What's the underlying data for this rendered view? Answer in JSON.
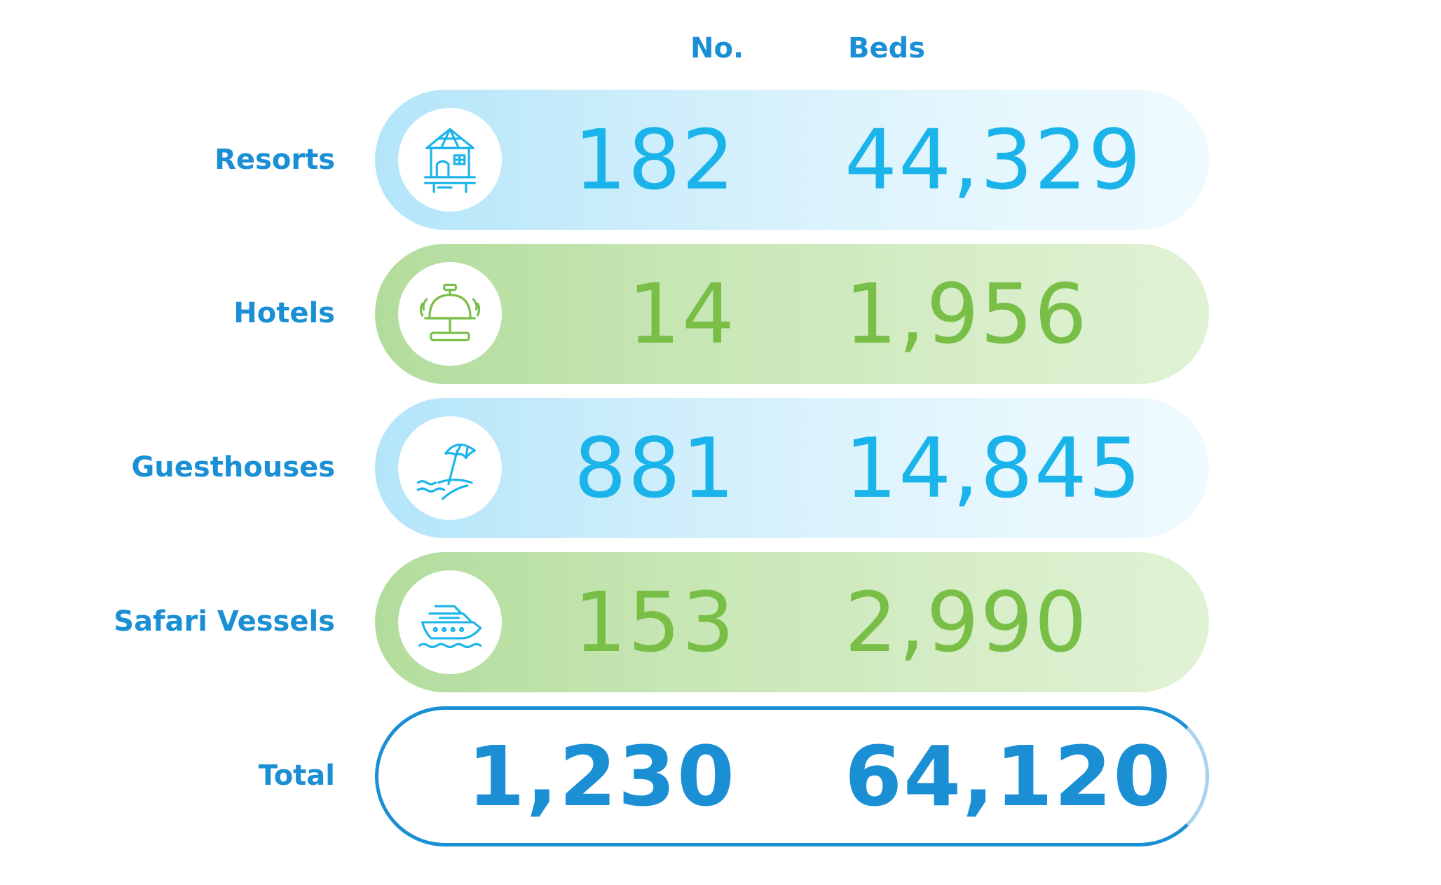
{
  "header": {
    "no_label": "No.",
    "beds_label": "Beds"
  },
  "rows": [
    {
      "label": "Resorts",
      "icon": "bungalow-icon",
      "count": "182",
      "beds": "44,329",
      "color": "#1bb4ea"
    },
    {
      "label": "Hotels",
      "icon": "reception-bell-icon",
      "count": "14",
      "beds": "1,956",
      "color": "#78be47"
    },
    {
      "label": "Guesthouses",
      "icon": "beach-umbrella-icon",
      "count": "881",
      "beds": "14,845",
      "color": "#1bb4ea"
    },
    {
      "label": "Safari Vessels",
      "icon": "cruise-ship-icon",
      "count": "153",
      "beds": "2,990",
      "color": "#78be47"
    }
  ],
  "total": {
    "label": "Total",
    "count": "1,230",
    "beds": "64,120",
    "color": "#1a8fd4"
  },
  "chart_data": {
    "type": "table",
    "columns": [
      "No.",
      "Beds"
    ],
    "rows": [
      {
        "category": "Resorts",
        "no": 182,
        "beds": 44329
      },
      {
        "category": "Hotels",
        "no": 14,
        "beds": 1956
      },
      {
        "category": "Guesthouses",
        "no": 881,
        "beds": 14845
      },
      {
        "category": "Safari Vessels",
        "no": 153,
        "beds": 2990
      }
    ],
    "total": {
      "category": "Total",
      "no": 1230,
      "beds": 64120
    }
  }
}
